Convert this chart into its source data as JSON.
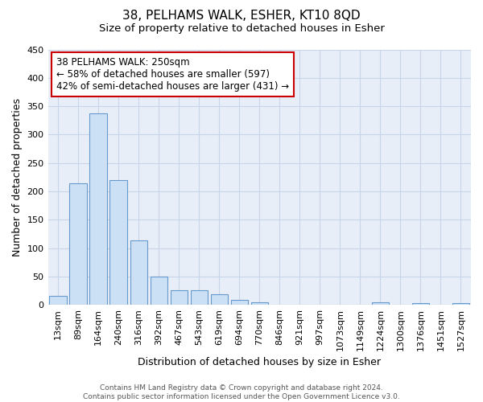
{
  "title": "38, PELHAMS WALK, ESHER, KT10 8QD",
  "subtitle": "Size of property relative to detached houses in Esher",
  "xlabel": "Distribution of detached houses by size in Esher",
  "ylabel": "Number of detached properties",
  "bar_color": "#cce0f5",
  "bar_edge_color": "#6699cc",
  "background_color": "#ffffff",
  "plot_bg_color": "#e8eef8",
  "grid_color": "#c8d4e8",
  "categories": [
    "13sqm",
    "89sqm",
    "164sqm",
    "240sqm",
    "316sqm",
    "392sqm",
    "467sqm",
    "543sqm",
    "619sqm",
    "694sqm",
    "770sqm",
    "846sqm",
    "921sqm",
    "997sqm",
    "1073sqm",
    "1149sqm",
    "1224sqm",
    "1300sqm",
    "1376sqm",
    "1451sqm",
    "1527sqm"
  ],
  "values": [
    16,
    214,
    338,
    220,
    114,
    50,
    26,
    26,
    19,
    9,
    5,
    0,
    0,
    0,
    0,
    0,
    4,
    0,
    3,
    0,
    3
  ],
  "annotation_text": "38 PELHAMS WALK: 250sqm\n← 58% of detached houses are smaller (597)\n42% of semi-detached houses are larger (431) →",
  "annotation_box_color": "#ffffff",
  "annotation_border_color": "#cc0000",
  "ylim": [
    0,
    450
  ],
  "yticks": [
    0,
    50,
    100,
    150,
    200,
    250,
    300,
    350,
    400,
    450
  ],
  "footer": "Contains HM Land Registry data © Crown copyright and database right 2024.\nContains public sector information licensed under the Open Government Licence v3.0.",
  "title_fontsize": 11,
  "subtitle_fontsize": 9.5,
  "axis_label_fontsize": 9,
  "tick_fontsize": 8,
  "annotation_fontsize": 8.5,
  "footer_fontsize": 6.5
}
